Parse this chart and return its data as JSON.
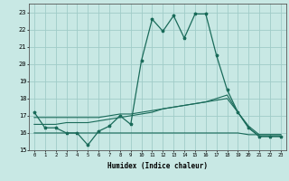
{
  "title": "",
  "xlabel": "Humidex (Indice chaleur)",
  "ylabel": "",
  "background_color": "#c8e8e4",
  "grid_color": "#a0ccc8",
  "line_color": "#1a6b5a",
  "xlim": [
    -0.5,
    23.5
  ],
  "ylim": [
    15,
    23.5
  ],
  "yticks": [
    15,
    16,
    17,
    18,
    19,
    20,
    21,
    22,
    23
  ],
  "xticks": [
    0,
    1,
    2,
    3,
    4,
    5,
    6,
    7,
    8,
    9,
    10,
    11,
    12,
    13,
    14,
    15,
    16,
    17,
    18,
    19,
    20,
    21,
    22,
    23
  ],
  "line1_x": [
    0,
    1,
    2,
    3,
    4,
    5,
    6,
    7,
    8,
    9,
    10,
    11,
    12,
    13,
    14,
    15,
    16,
    17,
    18,
    19,
    20,
    21,
    22,
    23
  ],
  "line1_y": [
    17.2,
    16.3,
    16.3,
    16.0,
    16.0,
    15.3,
    16.1,
    16.4,
    17.0,
    16.5,
    20.2,
    22.6,
    21.9,
    22.8,
    21.5,
    22.9,
    22.9,
    20.5,
    18.5,
    17.2,
    16.3,
    15.8,
    15.8,
    15.8
  ],
  "line2_x": [
    0,
    1,
    2,
    3,
    4,
    5,
    6,
    7,
    8,
    9,
    10,
    11,
    12,
    13,
    14,
    15,
    16,
    17,
    18,
    19,
    20,
    21,
    22,
    23
  ],
  "line2_y": [
    16.0,
    16.0,
    16.0,
    16.0,
    16.0,
    16.0,
    16.0,
    16.0,
    16.0,
    16.0,
    16.0,
    16.0,
    16.0,
    16.0,
    16.0,
    16.0,
    16.0,
    16.0,
    16.0,
    16.0,
    15.9,
    15.9,
    15.9,
    15.9
  ],
  "line3_x": [
    0,
    1,
    2,
    3,
    4,
    5,
    6,
    7,
    8,
    9,
    10,
    11,
    12,
    13,
    14,
    15,
    16,
    17,
    18,
    19,
    20,
    21,
    22,
    23
  ],
  "line3_y": [
    16.5,
    16.5,
    16.5,
    16.6,
    16.6,
    16.6,
    16.7,
    16.8,
    16.9,
    17.0,
    17.1,
    17.2,
    17.4,
    17.5,
    17.6,
    17.7,
    17.8,
    18.0,
    18.2,
    17.2,
    16.3,
    15.8,
    15.8,
    15.8
  ],
  "line4_x": [
    0,
    1,
    2,
    3,
    4,
    5,
    6,
    7,
    8,
    9,
    10,
    11,
    12,
    13,
    14,
    15,
    16,
    17,
    18,
    19,
    20,
    21,
    22,
    23
  ],
  "line4_y": [
    16.9,
    16.9,
    16.9,
    16.9,
    16.9,
    16.9,
    16.9,
    17.0,
    17.1,
    17.1,
    17.2,
    17.3,
    17.4,
    17.5,
    17.6,
    17.7,
    17.8,
    17.9,
    18.0,
    17.2,
    16.4,
    15.9,
    15.9,
    15.9
  ]
}
